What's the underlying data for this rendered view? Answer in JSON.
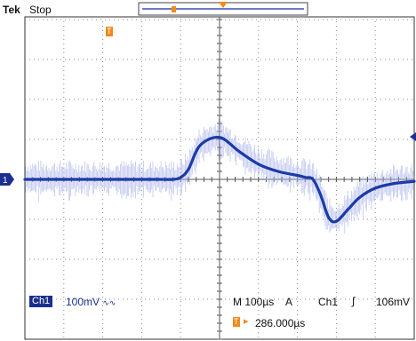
{
  "header": {
    "brand": "Tek",
    "run_state": "Stop"
  },
  "channel": {
    "badge": "Ch1",
    "scale": "100mV",
    "coupling_glyph": "∿∿",
    "ground_marker": "1",
    "trace_color": "#1c3aa8",
    "noise_color": "#a9b3ea"
  },
  "timebase": {
    "scale": "M 100µs",
    "mode": "A",
    "trigger_source": "Ch1",
    "trigger_slope": "∫",
    "trigger_level": "106mV",
    "trigger_position_label": "286.000µs",
    "trigger_badge": "T",
    "trigger_arrow": "▸"
  },
  "markers": {
    "top_marker": "T",
    "accent_color": "#f08a1c"
  },
  "chart_data": {
    "type": "line",
    "title": "",
    "xlabel": "",
    "ylabel": "",
    "xlim": [
      0,
      10
    ],
    "ylim": [
      -4,
      4
    ],
    "grid": true,
    "series": [
      {
        "name": "",
        "x": [
          0,
          0.5,
          1,
          1.5,
          2,
          2.5,
          3,
          3.4,
          3.8,
          4.0,
          4.2,
          4.5,
          5.0,
          5.5,
          6.0,
          6.5,
          7.0,
          7.2,
          7.4,
          7.6,
          7.8,
          8.0,
          8.3,
          8.6,
          9.0,
          9.5,
          10
        ],
        "y": [
          0,
          0,
          0,
          0,
          0,
          0,
          0,
          0,
          0,
          0.05,
          0.25,
          0.85,
          1.05,
          0.7,
          0.38,
          0.2,
          0.1,
          0.05,
          0,
          -0.4,
          -0.95,
          -1.05,
          -0.75,
          -0.45,
          -0.22,
          -0.1,
          -0.05
        ]
      }
    ]
  }
}
